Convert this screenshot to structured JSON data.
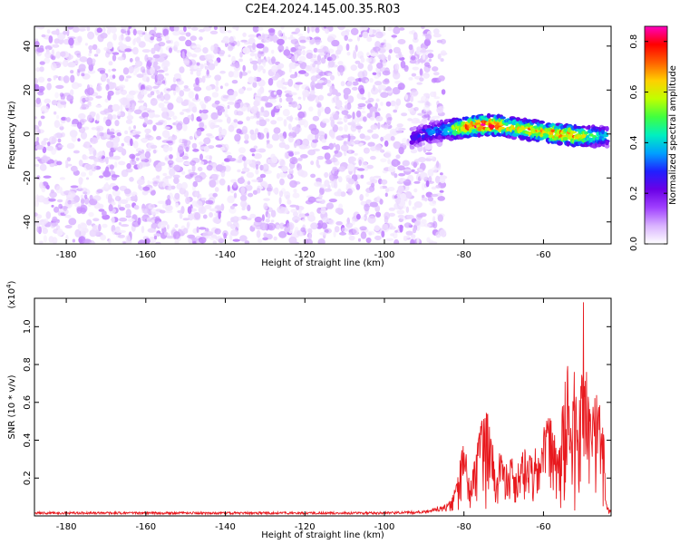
{
  "figure": {
    "title": "C2E4.2024.145.00.35.R03"
  },
  "chart_data": [
    {
      "type": "heatmap",
      "panel": "top",
      "title": "C2E4.2024.145.00.35.R03",
      "xlabel": "Height of straight line (km)",
      "ylabel": "Frequency (Hz)",
      "xlim": [
        -188,
        -43
      ],
      "ylim": [
        -50,
        49
      ],
      "x_ticks": [
        -180,
        -160,
        -140,
        -120,
        -100,
        -80,
        -60
      ],
      "y_ticks": [
        -40,
        -20,
        0,
        20,
        40
      ],
      "grid": false,
      "colorbar": {
        "label": "Normalized spectral amplitude",
        "range": [
          0,
          0.86
        ],
        "ticks": [
          0.0,
          0.2,
          0.4,
          0.6,
          0.8
        ],
        "colormap": [
          "#ffffff",
          "#d9b3ff",
          "#a040ff",
          "#6a00e6",
          "#2020ff",
          "#00a0ff",
          "#00f0c0",
          "#40ff40",
          "#c0ff00",
          "#ffd000",
          "#ff6000",
          "#ff0000",
          "#ff00c0"
        ]
      },
      "description_values": {
        "noise_region_x": [
          -188,
          -85
        ],
        "signal_trace": {
          "x": [
            -93,
            -90,
            -87,
            -84,
            -80,
            -76,
            -72,
            -68,
            -64,
            -60,
            -56,
            -52,
            -48,
            -44
          ],
          "frequency_hz": [
            -2,
            0,
            1,
            2,
            3,
            4,
            4,
            3,
            2,
            1,
            0,
            -1,
            -1,
            -1
          ],
          "peak_amplitude": [
            0.25,
            0.3,
            0.35,
            0.45,
            0.7,
            0.8,
            0.75,
            0.6,
            0.7,
            0.65,
            0.75,
            0.7,
            0.5,
            0.4
          ]
        }
      }
    },
    {
      "type": "line",
      "panel": "bottom",
      "xlabel": "Height of straight line (km)",
      "ylabel": "SNR (10 * v/v)",
      "y_multiplier_label": "(x10",
      "y_multiplier_exp": "4",
      "y_multiplier_close": ")",
      "xlim": [
        -188,
        -43
      ],
      "ylim": [
        0,
        1.15
      ],
      "x_ticks": [
        -180,
        -160,
        -140,
        -120,
        -100,
        -80,
        -60
      ],
      "y_ticks": [
        0.2,
        0.4,
        0.6,
        0.8,
        1.0
      ],
      "grid": false,
      "series": [
        {
          "color": "#e8191e",
          "x": [
            -188,
            -100,
            -90,
            -86,
            -84,
            -82,
            -81,
            -80,
            -79,
            -78,
            -77,
            -76,
            -75,
            -74,
            -73,
            -72,
            -71,
            -70,
            -69,
            -68,
            -67,
            -66,
            -65,
            -64,
            -63,
            -62,
            -61,
            -60,
            -59,
            -58,
            -57,
            -56,
            -55,
            -54,
            -53,
            -52,
            -51,
            -50.5,
            -50,
            -49.5,
            -49,
            -48,
            -47,
            -46,
            -45,
            -44.5,
            -44,
            -43
          ],
          "y": [
            0.015,
            0.015,
            0.02,
            0.04,
            0.06,
            0.15,
            0.3,
            0.4,
            0.28,
            0.22,
            0.35,
            0.45,
            0.55,
            0.58,
            0.4,
            0.3,
            0.35,
            0.25,
            0.28,
            0.32,
            0.22,
            0.3,
            0.42,
            0.38,
            0.3,
            0.35,
            0.28,
            0.48,
            0.52,
            0.58,
            0.4,
            0.35,
            0.65,
            0.82,
            0.5,
            0.85,
            0.6,
            0.9,
            1.15,
            0.95,
            0.7,
            0.55,
            0.65,
            0.7,
            0.55,
            0.2,
            0.04,
            0.02
          ]
        }
      ]
    }
  ]
}
